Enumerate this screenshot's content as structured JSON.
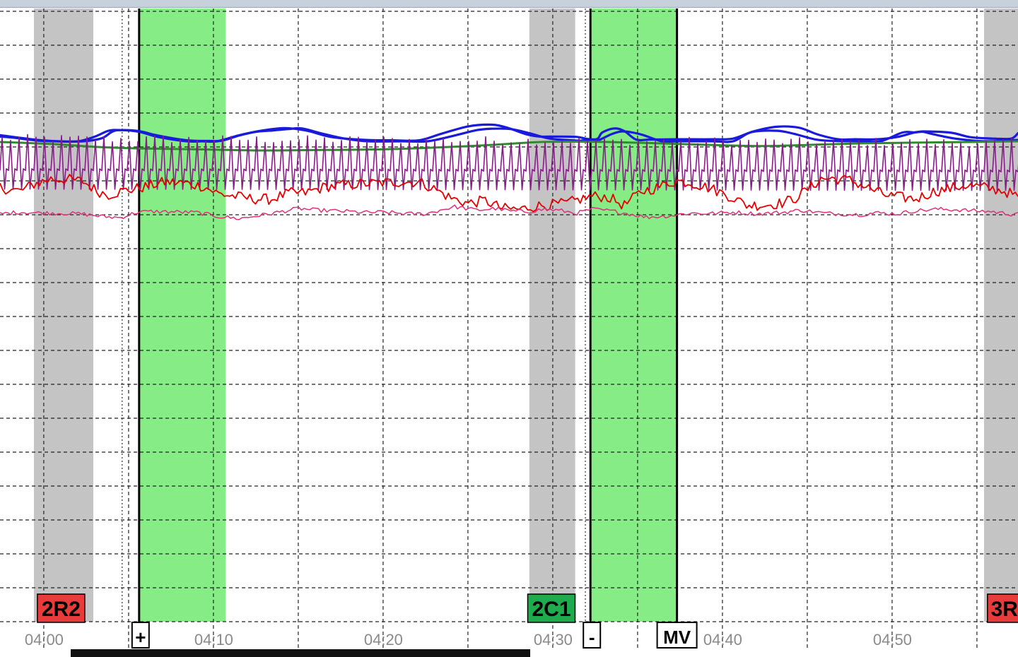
{
  "chart_data": {
    "type": "line",
    "title": "",
    "xlabel": "",
    "ylabel": "",
    "x_unit": "time (mm:ss)",
    "xlim": [
      "03:57.4",
      "04:57.4"
    ],
    "x_ticks": [
      "04:00",
      "04:10",
      "04:20",
      "04:30",
      "04:40",
      "04:50"
    ],
    "grid": true,
    "grid_style": "dashed",
    "event_regions": [
      {
        "kind": "gray",
        "start": "03:59.4",
        "end": "04:02.9"
      },
      {
        "kind": "gray",
        "start": "04:28.6",
        "end": "04:31.3"
      },
      {
        "kind": "gray",
        "start": "04:55.4",
        "end": "04:57.4"
      },
      {
        "kind": "green",
        "start": "04:05.6",
        "end": "04:10.7"
      },
      {
        "kind": "green",
        "start": "04:32.2",
        "end": "04:37.3"
      }
    ],
    "markers": [
      {
        "time": "04:05.6",
        "style": "solid"
      },
      {
        "time": "04:32.2",
        "style": "solid"
      },
      {
        "time": "04:37.3",
        "style": "solid"
      },
      {
        "time": "04:04.6",
        "style": "dotted"
      },
      {
        "time": "04:31.9",
        "style": "dotted"
      }
    ],
    "event_labels": [
      {
        "text": "2R2",
        "time": "04:01.0",
        "color": "#e83b3b"
      },
      {
        "text": "2C1",
        "time": "04:29.9",
        "color": "#1faa4d"
      },
      {
        "text": "3R",
        "time": "04:56.6",
        "color": "#e83b3b"
      }
    ],
    "marker_labels": [
      {
        "text": "+",
        "time": "04:05.6"
      },
      {
        "text": "-",
        "time": "04:32.2"
      },
      {
        "text": "MV",
        "time": "04:37.3"
      }
    ],
    "series": [
      {
        "color": "#1a1adb",
        "style": "smooth",
        "x": [
          "03:57.4",
          "03:58.3",
          "03:59.6",
          "04:00.7",
          "04:02.0",
          "04:03.0",
          "04:03.8",
          "04:04.5",
          "04:05.6",
          "04:06.7",
          "04:08.4",
          "04:09.3",
          "04:10.2",
          "04:11.5",
          "04:12.9",
          "04:14.2",
          "04:15.5",
          "04:17.0",
          "04:19.0",
          "04:20.5",
          "04:22.1",
          "04:23.4",
          "04:25.0",
          "04:26.4",
          "04:27.3",
          "04:28.4",
          "04:29.2",
          "04:30.2",
          "04:31.4",
          "04:32.0",
          "04:32.6",
          "04:32.9",
          "04:33.6",
          "04:34.2",
          "04:34.9",
          "04:35.7",
          "04:37.3",
          "04:39.4",
          "04:40.6",
          "04:41.8",
          "04:43.2",
          "04:44.5",
          "04:45.6",
          "04:46.8",
          "04:47.8",
          "04:49.1",
          "04:50.3",
          "04:51.4",
          "04:52.1",
          "04:53.5",
          "04:54.6",
          "04:56.0",
          "04:57.0",
          "04:57.4"
        ],
        "y": [
          0.14,
          0.1,
          0.02,
          0.0,
          0.0,
          0.14,
          0.31,
          0.33,
          0.28,
          0.13,
          0.0,
          0.0,
          0.0,
          0.18,
          0.32,
          0.39,
          0.31,
          0.12,
          0.04,
          0.03,
          0.03,
          0.22,
          0.44,
          0.49,
          0.4,
          0.21,
          0.14,
          0.14,
          0.13,
          0.07,
          0.07,
          0.26,
          0.38,
          0.3,
          0.05,
          0.05,
          0.06,
          0.06,
          0.08,
          0.29,
          0.43,
          0.4,
          0.2,
          0.06,
          0.06,
          0.06,
          0.13,
          0.27,
          0.29,
          0.25,
          0.12,
          0.08,
          0.08,
          0.24
        ]
      },
      {
        "color": "#1a1adb",
        "style": "smooth",
        "x": [
          "03:57.4",
          "03:59.6",
          "04:00.9",
          "04:02.3",
          "04:03.4",
          "04:04.0",
          "04:04.5",
          "04:05.6",
          "04:06.7",
          "04:08.4",
          "04:09.7",
          "04:10.5",
          "04:11.5",
          "04:12.5",
          "04:13.5",
          "04:14.4",
          "04:15.2",
          "04:16.3",
          "04:17.7",
          "04:19.1",
          "04:21.1",
          "04:22.6",
          "04:24.2",
          "04:25.5",
          "04:26.4",
          "04:27.5",
          "04:28.6",
          "04:29.8",
          "04:31.4",
          "04:31.9",
          "04:32.5",
          "04:33.5",
          "04:34.2",
          "04:35.2",
          "04:36.4",
          "04:37.3",
          "04:39.4",
          "04:40.6",
          "04:41.7",
          "04:43.2",
          "04:44.2",
          "04:45.5",
          "04:46.6",
          "04:48.2",
          "04:49.3",
          "04:50.6",
          "04:51.3",
          "04:51.8",
          "04:52.3",
          "04:53.7",
          "04:55.5",
          "04:57.4"
        ],
        "y": [
          0.18,
          0.04,
          0.0,
          0.0,
          0.09,
          0.28,
          0.33,
          0.3,
          0.17,
          0.03,
          0.01,
          0.02,
          0.17,
          0.28,
          0.32,
          0.36,
          0.38,
          0.24,
          0.08,
          0.0,
          0.0,
          0.0,
          0.17,
          0.33,
          0.37,
          0.36,
          0.24,
          0.08,
          0.02,
          0.03,
          0.0,
          0.22,
          0.29,
          0.2,
          0.0,
          0.0,
          0.0,
          0.0,
          0.27,
          0.31,
          0.22,
          0.05,
          0.01,
          0.0,
          0.0,
          0.26,
          0.26,
          0.28,
          0.22,
          0.08,
          0.0,
          0.04
        ]
      },
      {
        "color": "#2e8b2e",
        "style": "smooth",
        "x": [
          "03:57.4",
          "04:00.4",
          "04:02.9",
          "04:05.6",
          "04:09.4",
          "04:12.5",
          "04:15.5",
          "04:20.5",
          "04:25.5",
          "04:28.9",
          "04:30.9",
          "04:33.2",
          "04:36.3",
          "04:39.4",
          "04:42.5",
          "04:45.5",
          "04:48.2",
          "04:51.3",
          "04:54.6",
          "04:57.4"
        ],
        "y": [
          -0.02,
          -0.08,
          -0.16,
          -0.21,
          -0.24,
          -0.27,
          -0.26,
          -0.23,
          -0.13,
          -0.03,
          -0.01,
          -0.02,
          -0.06,
          -0.11,
          -0.14,
          -0.1,
          -0.06,
          -0.04,
          -0.02,
          0.0
        ]
      },
      {
        "color": "#8b1a8b",
        "style": "spikes",
        "period_s": 0.5,
        "baseline": [
          -0.86,
          -0.9
        ],
        "peak": [
          0.08,
          -0.04
        ]
      },
      {
        "color": "#e60000",
        "style": "noisy",
        "x": [
          "03:57.4",
          "03:57.9",
          "03:58.6",
          "03:59.4",
          "04:00.4",
          "04:01.5",
          "04:02.3",
          "04:03.1",
          "04:03.8",
          "04:04.5",
          "04:05.8",
          "04:07.1",
          "04:08.2",
          "04:09.4",
          "04:10.3",
          "04:11.1",
          "04:12.3",
          "04:13.4",
          "04:14.4",
          "04:15.4",
          "04:16.6",
          "04:18.1",
          "04:19.3",
          "04:20.9",
          "04:22.1",
          "04:22.8",
          "04:24.0",
          "04:25.0",
          "04:26.0",
          "04:27.0",
          "04:28.0",
          "04:29.0",
          "04:29.8",
          "04:30.8",
          "04:31.6",
          "04:32.3",
          "04:33.2",
          "04:34.2",
          "04:35.2",
          "04:36.1",
          "04:37.0",
          "04:37.3",
          "04:38.1",
          "04:39.3",
          "04:40.5",
          "04:41.4",
          "04:42.5",
          "04:43.5",
          "04:44.3",
          "04:45.2",
          "04:45.8",
          "04:46.6",
          "04:47.5",
          "04:48.6",
          "04:49.6",
          "04:50.6",
          "04:51.4",
          "04:52.4",
          "04:53.4",
          "04:54.3",
          "04:55.4",
          "04:56.6",
          "04:57.4"
        ],
        "y": [
          -1.35,
          -1.42,
          -1.47,
          -1.26,
          -1.11,
          -1.13,
          -1.18,
          -1.46,
          -1.58,
          -1.48,
          -1.36,
          -1.2,
          -1.23,
          -1.33,
          -1.55,
          -1.61,
          -1.7,
          -1.71,
          -1.53,
          -1.52,
          -1.34,
          -1.27,
          -1.24,
          -1.2,
          -1.2,
          -1.35,
          -1.68,
          -1.83,
          -1.75,
          -1.98,
          -2.01,
          -1.91,
          -1.87,
          -1.83,
          -1.71,
          -1.62,
          -1.64,
          -1.89,
          -1.48,
          -1.37,
          -1.21,
          -1.17,
          -1.22,
          -1.39,
          -1.64,
          -1.88,
          -1.88,
          -1.82,
          -1.67,
          -1.34,
          -1.11,
          -1.1,
          -1.15,
          -1.38,
          -1.59,
          -1.66,
          -1.7,
          -1.49,
          -1.39,
          -1.3,
          -1.36,
          -1.47,
          -1.63
        ]
      },
      {
        "color": "#e0307a",
        "style": "noisy",
        "x": [
          "03:57.4",
          "03:58.5",
          "03:59.5",
          "04:01.0",
          "04:02.2",
          "04:03.5",
          "04:04.5",
          "04:05.5",
          "04:06.3",
          "04:07.5",
          "04:09.0",
          "04:10.3",
          "04:11.5",
          "04:13.4",
          "04:15.0",
          "04:16.0",
          "04:17.5",
          "04:19.0",
          "04:20.0",
          "04:21.5",
          "04:22.5",
          "04:23.5",
          "04:24.2",
          "04:25.5",
          "04:26.6",
          "04:27.5",
          "04:28.6",
          "04:29.5",
          "04:30.5",
          "04:31.4",
          "04:32.3",
          "04:33.5",
          "04:34.5",
          "04:35.5",
          "04:36.8",
          "04:38.0",
          "04:39.4",
          "04:40.6",
          "04:42.0",
          "04:43.5",
          "04:44.6",
          "04:46.0",
          "04:47.3",
          "04:48.2",
          "04:49.0",
          "04:50.3",
          "04:51.3",
          "04:52.7",
          "04:53.8",
          "04:54.8",
          "04:55.8",
          "04:57.0",
          "04:57.4"
        ],
        "y": [
          -2.14,
          -2.09,
          -2.11,
          -2.12,
          -2.14,
          -2.22,
          -2.25,
          -2.09,
          -2.07,
          -2.08,
          -2.1,
          -2.22,
          -2.28,
          -2.13,
          -1.98,
          -2.03,
          -2.06,
          -2.1,
          -2.09,
          -2.14,
          -2.14,
          -2.01,
          -1.93,
          -2.03,
          -1.98,
          -2.06,
          -2.07,
          -2.0,
          -2.05,
          -2.12,
          -2.0,
          -2.06,
          -2.14,
          -2.24,
          -2.2,
          -2.12,
          -2.13,
          -2.09,
          -2.14,
          -2.1,
          -2.03,
          -2.12,
          -2.15,
          -2.16,
          -2.11,
          -2.14,
          -2.05,
          -2.0,
          -2.02,
          -2.05,
          -2.07,
          -2.15,
          -2.1
        ]
      }
    ]
  }
}
